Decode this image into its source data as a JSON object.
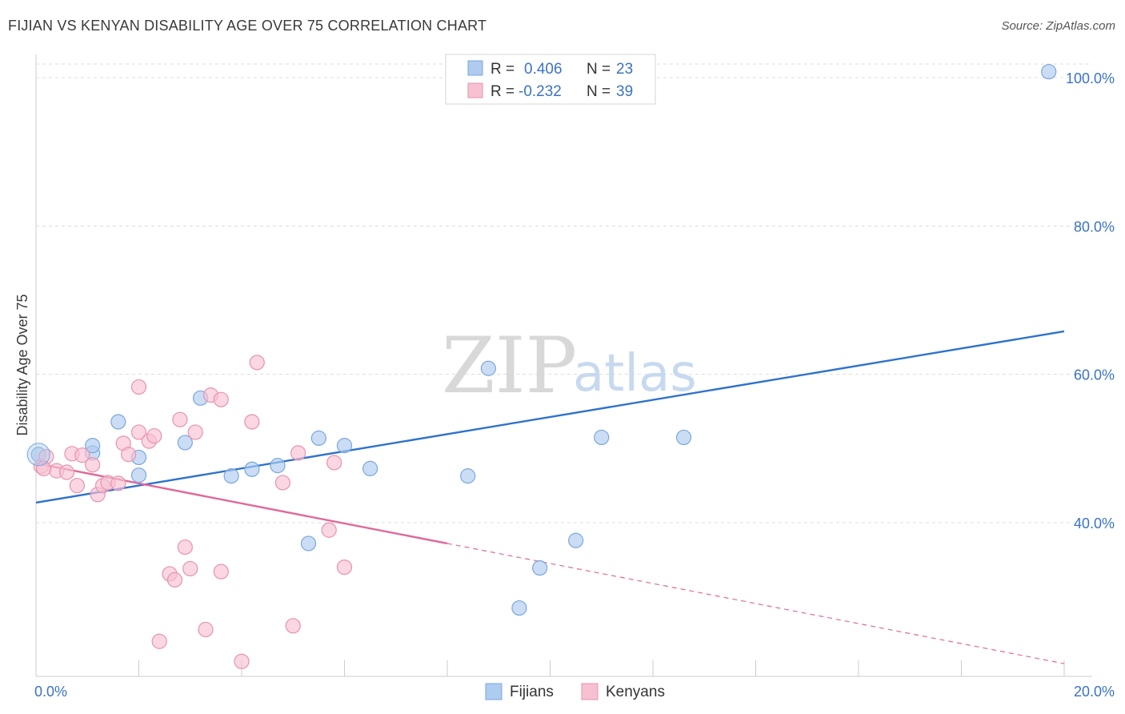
{
  "header": {
    "title": "FIJIAN VS KENYAN DISABILITY AGE OVER 75 CORRELATION CHART",
    "source": "Source: ZipAtlas.com"
  },
  "watermark": {
    "zip": "ZIP",
    "atlas": "atlas"
  },
  "legend": {
    "rows": [
      {
        "r_label": "R =",
        "r_value": "0.406",
        "n_label": "N =",
        "n_value": "23",
        "color": "#aecbf0",
        "stroke": "#7aa7dc"
      },
      {
        "r_label": "R =",
        "r_value": "-0.232",
        "n_label": "N =",
        "n_value": "39",
        "color": "#f7c1d2",
        "stroke": "#e793ad"
      }
    ]
  },
  "bottom_legend": {
    "items": [
      "Fijians",
      "Kenyans"
    ]
  },
  "chart_data": {
    "type": "scatter",
    "title": "FIJIAN VS KENYAN DISABILITY AGE OVER 75 CORRELATION CHART",
    "ylabel": "Disability Age Over 75",
    "xlabel": "",
    "xlim": [
      0,
      20
    ],
    "ylim": [
      20,
      100
    ],
    "x_tick_labels": [
      "0.0%",
      "20.0%"
    ],
    "y_ticks": [
      40,
      60,
      80,
      100
    ],
    "y_tick_labels": [
      "40.0%",
      "60.0%",
      "80.0%",
      "100.0%"
    ],
    "grid": "horizontal dashed",
    "legend_position": "top-center",
    "series": [
      {
        "name": "Fijians",
        "color": "#aecbf0",
        "stroke": "#7aa7dc",
        "line_color": "#2f72cc",
        "trend": {
          "x": [
            0,
            20
          ],
          "y": [
            42.7,
            65.8
          ]
        },
        "points": [
          [
            0.05,
            49.2
          ],
          [
            1.1,
            49.4
          ],
          [
            1.1,
            50.4
          ],
          [
            1.6,
            53.6
          ],
          [
            2.0,
            46.4
          ],
          [
            2.0,
            48.8
          ],
          [
            2.9,
            50.8
          ],
          [
            3.2,
            56.8
          ],
          [
            3.8,
            46.3
          ],
          [
            4.2,
            47.2
          ],
          [
            4.7,
            47.7
          ],
          [
            5.3,
            37.2
          ],
          [
            5.5,
            51.4
          ],
          [
            6.0,
            50.4
          ],
          [
            6.5,
            47.3
          ],
          [
            8.4,
            46.3
          ],
          [
            8.8,
            60.8
          ],
          [
            9.4,
            28.5
          ],
          [
            9.8,
            33.9
          ],
          [
            10.5,
            37.6
          ],
          [
            11.0,
            51.5
          ],
          [
            12.6,
            51.5
          ],
          [
            19.7,
            100.8
          ]
        ]
      },
      {
        "name": "Kenyans",
        "color": "#f7c1d2",
        "stroke": "#e793ad",
        "line_color": "#e0679a",
        "trend": {
          "x": [
            0,
            8.0
          ],
          "y": [
            48.0,
            37.2
          ]
        },
        "trend_dashed": {
          "x": [
            8.0,
            20
          ],
          "y": [
            37.2,
            21.0
          ]
        },
        "points": [
          [
            0.1,
            47.6
          ],
          [
            0.2,
            48.9
          ],
          [
            0.4,
            47.0
          ],
          [
            0.6,
            46.8
          ],
          [
            0.7,
            49.3
          ],
          [
            0.8,
            45.0
          ],
          [
            0.9,
            49.1
          ],
          [
            1.1,
            47.8
          ],
          [
            1.2,
            43.8
          ],
          [
            1.3,
            45.0
          ],
          [
            1.4,
            45.4
          ],
          [
            1.6,
            45.3
          ],
          [
            1.7,
            50.7
          ],
          [
            1.8,
            49.2
          ],
          [
            2.0,
            52.2
          ],
          [
            2.0,
            58.3
          ],
          [
            2.2,
            51.0
          ],
          [
            2.3,
            51.7
          ],
          [
            2.4,
            24.0
          ],
          [
            2.6,
            33.1
          ],
          [
            2.7,
            32.3
          ],
          [
            2.8,
            53.9
          ],
          [
            2.9,
            36.7
          ],
          [
            3.0,
            33.8
          ],
          [
            3.1,
            52.2
          ],
          [
            3.3,
            25.6
          ],
          [
            3.4,
            57.2
          ],
          [
            3.6,
            56.6
          ],
          [
            3.6,
            33.4
          ],
          [
            4.0,
            21.3
          ],
          [
            4.2,
            53.6
          ],
          [
            4.3,
            61.6
          ],
          [
            4.8,
            45.4
          ],
          [
            5.0,
            26.1
          ],
          [
            5.1,
            49.4
          ],
          [
            5.7,
            39.0
          ],
          [
            5.8,
            48.1
          ],
          [
            6.0,
            34.0
          ],
          [
            0.15,
            47.3
          ]
        ]
      }
    ]
  }
}
